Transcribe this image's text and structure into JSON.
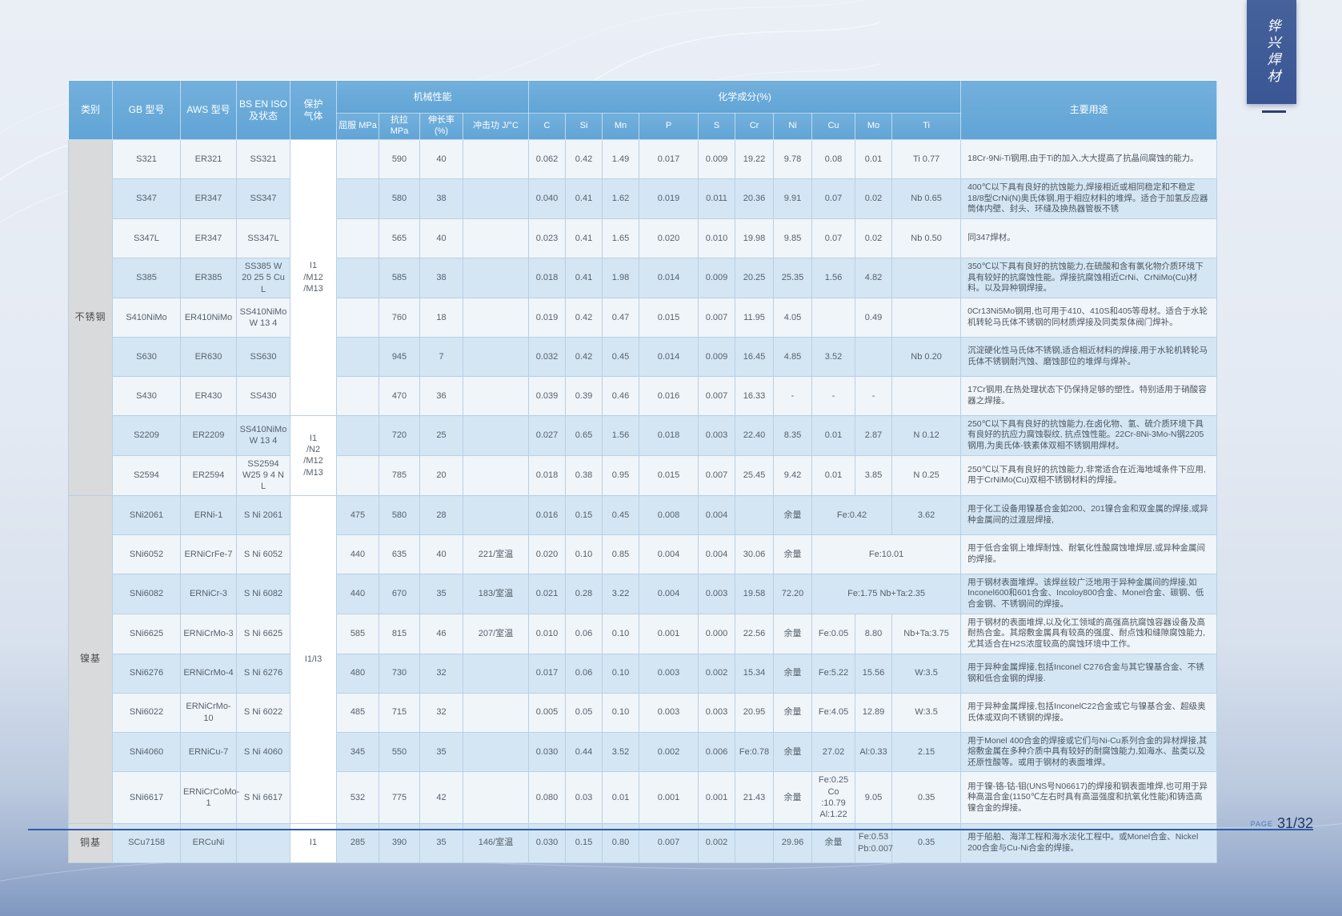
{
  "page": {
    "side_tab": "铧兴焊材",
    "footer_label": "PAGE",
    "footer_page": "31/32",
    "colors": {
      "header_blue": "#66a9d8",
      "row_light": "#f0f5fa",
      "row_blue": "#d4e6f4",
      "category_gray": "#d9dadc",
      "tab_navy": "#3a5694",
      "footer_line_blue": "#2f5cac"
    }
  },
  "table": {
    "headers": {
      "category": "类别",
      "gb": "GB 型号",
      "aws": "AWS 型号",
      "bsen": "BS EN ISO\n及状态",
      "gas": "保护\n气体",
      "mech_group": "机械性能",
      "chem_group": "化学成分(%)",
      "use": "主要用途",
      "mech": [
        "屈服 MPa",
        "抗拉 MPa",
        "伸长率 (%)",
        "冲击功 J/°C"
      ],
      "chem": [
        "C",
        "Si",
        "Mn",
        "P",
        "S",
        "Cr",
        "Ni",
        "Cu",
        "Mo",
        "Ti"
      ]
    },
    "groups": [
      {
        "label": "不锈钢",
        "rows": 9
      },
      {
        "label": "镍基",
        "rows": 8
      },
      {
        "label": "铜基",
        "rows": 1
      }
    ],
    "gas_groups": [
      {
        "text": "I1\n/M12\n/M13",
        "rows": 7
      },
      {
        "text": "I1\n/N2\n/M12\n/M13",
        "rows": 2
      },
      {
        "text": "I1/I3",
        "rows": 8
      },
      {
        "text": "I1",
        "rows": 1
      }
    ],
    "rows": [
      {
        "gb": "S321",
        "aws": "ER321",
        "bsen": "SS321",
        "mech": [
          "",
          "590",
          "40",
          ""
        ],
        "chem": [
          "0.062",
          "0.42",
          "1.49",
          "0.017",
          "0.009",
          "19.22",
          "9.78",
          "0.08",
          "0.01",
          "Ti 0.77"
        ],
        "use": "18Cr-9Ni-Ti钢用,由于Ti的加入,大大提高了抗晶间腐蚀的能力。"
      },
      {
        "gb": "S347",
        "aws": "ER347",
        "bsen": "SS347",
        "mech": [
          "",
          "580",
          "38",
          ""
        ],
        "chem": [
          "0.040",
          "0.41",
          "1.62",
          "0.019",
          "0.011",
          "20.36",
          "9.91",
          "0.07",
          "0.02",
          "Nb 0.65"
        ],
        "use": "400℃以下具有良好的抗蚀能力,焊接相近或相同稳定和不稳定18/8型CrNi(N)奥氏体钢,用于相应材料的堆焊。适合于加氢反应器筒体内壁、封头、环缝及换热器管板不锈"
      },
      {
        "gb": "S347L",
        "aws": "ER347",
        "bsen": "SS347L",
        "mech": [
          "",
          "565",
          "40",
          ""
        ],
        "chem": [
          "0.023",
          "0.41",
          "1.65",
          "0.020",
          "0.010",
          "19.98",
          "9.85",
          "0.07",
          "0.02",
          "Nb 0.50"
        ],
        "use": "同347焊材。"
      },
      {
        "gb": "S385",
        "aws": "ER385",
        "bsen": "SS385 W\n20 25 5 Cu L",
        "mech": [
          "",
          "585",
          "38",
          ""
        ],
        "chem": [
          "0.018",
          "0.41",
          "1.98",
          "0.014",
          "0.009",
          "20.25",
          "25.35",
          "1.56",
          "4.82",
          ""
        ],
        "use": "350℃以下具有良好的抗蚀能力,在硫酸和含有氯化物介质环境下具有较好的抗腐蚀性能。焊接抗腐蚀相近CrNi、CrNiMo(Cu)材料。以及异种钢焊接。"
      },
      {
        "gb": "S410NiMo",
        "aws": "ER410NiMo",
        "bsen": "SS410NiMo\nW 13 4",
        "mech": [
          "",
          "760",
          "18",
          ""
        ],
        "chem": [
          "0.019",
          "0.42",
          "0.47",
          "0.015",
          "0.007",
          "11.95",
          "4.05",
          "",
          "0.49",
          ""
        ],
        "use": "0Cr13Ni5Mo钢用,也可用于410、410S和405等母材。适合于水轮机转轮马氏体不锈钢的同材质焊接及同类泵体阀门焊补。"
      },
      {
        "gb": "S630",
        "aws": "ER630",
        "bsen": "SS630",
        "mech": [
          "",
          "945",
          "7",
          ""
        ],
        "chem": [
          "0.032",
          "0.42",
          "0.45",
          "0.014",
          "0.009",
          "16.45",
          "4.85",
          "3.52",
          "",
          "Nb 0.20"
        ],
        "use": "沉淀硬化性马氏体不锈钢,适合相近材料的焊接,用于水轮机转轮马氏体不锈钢耐汽蚀、磨蚀部位的堆焊与焊补。"
      },
      {
        "gb": "S430",
        "aws": "ER430",
        "bsen": "SS430",
        "mech": [
          "",
          "470",
          "36",
          ""
        ],
        "chem": [
          "0.039",
          "0.39",
          "0.46",
          "0.016",
          "0.007",
          "16.33",
          "-",
          "-",
          "-",
          ""
        ],
        "use": "17Cr钢用,在热处理状态下仍保持足够的塑性。特别适用于硝酸容器之焊接。"
      },
      {
        "gb": "S2209",
        "aws": "ER2209",
        "bsen": "SS410NiMo\nW 13 4",
        "mech": [
          "",
          "720",
          "25",
          ""
        ],
        "chem": [
          "0.027",
          "0.65",
          "1.56",
          "0.018",
          "0.003",
          "22.40",
          "8.35",
          "0.01",
          "2.87",
          "N 0.12"
        ],
        "use": "250℃以下具有良好的抗蚀能力,在卤化物、氢、硫介质环境下具有良好的抗应力腐蚀裂纹, 抗点蚀性能。22Cr-8Ni-3Mo-N钢2205钢用,为奥氏体-铁素体双相不锈钢用焊材。"
      },
      {
        "gb": "S2594",
        "aws": "ER2594",
        "bsen": "SS2594\nW25 9 4 N L",
        "mech": [
          "",
          "785",
          "20",
          ""
        ],
        "chem": [
          "0.018",
          "0.38",
          "0.95",
          "0.015",
          "0.007",
          "25.45",
          "9.42",
          "0.01",
          "3.85",
          "N 0.25"
        ],
        "use": "250℃以下具有良好的抗蚀能力,非常适合在近海地域条件下应用,用于CrNiMo(Cu)双相不锈钢材料的焊接。"
      },
      {
        "gb": "SNi2061",
        "aws": "ERNi-1",
        "bsen": "S Ni 2061",
        "mech": [
          "475",
          "580",
          "28",
          ""
        ],
        "chem": [
          "0.016",
          "0.15",
          "0.45",
          "0.008",
          "0.004",
          "",
          "余量",
          {
            "v": "Fe:0.42",
            "s": 2
          },
          "3.62"
        ],
        "use": "用于化工设备用镍基合金如200、201镍合金和双金属的焊接,或异种金属间的过渡层焊接,"
      },
      {
        "gb": "SNi6052",
        "aws": "ERNiCrFe-7",
        "bsen": "S Ni 6052",
        "mech": [
          "440",
          "635",
          "40",
          "221/室温"
        ],
        "chem": [
          "0.020",
          "0.10",
          "0.85",
          "0.004",
          "0.004",
          "30.06",
          "余量",
          {
            "v": "Fe:10.01",
            "s": 3
          }
        ],
        "use": "用于低合金钢上堆焊耐蚀、耐氧化性酸腐蚀堆焊层,或异种金属间的焊接。"
      },
      {
        "gb": "SNi6082",
        "aws": "ERNiCr-3",
        "bsen": "S Ni 6082",
        "mech": [
          "440",
          "670",
          "35",
          "183/室温"
        ],
        "chem": [
          "0.021",
          "0.28",
          "3.22",
          "0.004",
          "0.003",
          "19.58",
          "72.20",
          {
            "v": "Fe:1.75 Nb+Ta:2.35",
            "s": 3
          }
        ],
        "use": "用于钢材表面堆焊。该焊丝较广泛地用于异种金属间的焊接,如Inconel600和601合金、Incoloy800合金、Monel合金、碳钢、低合金钢、不锈钢间的焊接。"
      },
      {
        "gb": "SNi6625",
        "aws": "ERNiCrMo-3",
        "bsen": "S Ni 6625",
        "mech": [
          "585",
          "815",
          "46",
          "207/室温"
        ],
        "chem": [
          "0.010",
          "0.06",
          "0.10",
          "0.001",
          "0.000",
          "22.56",
          "余量",
          "Fe:0.05",
          "8.80",
          "Nb+Ta:3.75"
        ],
        "use": "用于钢材的表面堆焊,以及化工领域的高强高抗腐蚀容器设备及高耐热合金。其熔敷金属具有较高的强度、耐点蚀和缝隙腐蚀能力,尤其适合在H2S浓度较高的腐蚀环境中工作。"
      },
      {
        "gb": "SNi6276",
        "aws": "ERNiCrMo-4",
        "bsen": "S Ni 6276",
        "mech": [
          "480",
          "730",
          "32",
          ""
        ],
        "chem": [
          "0.017",
          "0.06",
          "0.10",
          "0.003",
          "0.002",
          "15.34",
          "余量",
          "Fe:5.22",
          "15.56",
          "W:3.5"
        ],
        "use": "用于异种金属焊接,包括Inconel C276合金与其它镍基合金、不锈钢和低合金钢的焊接."
      },
      {
        "gb": "SNi6022",
        "aws": "ERNiCrMo-10",
        "bsen": "S Ni 6022",
        "mech": [
          "485",
          "715",
          "32",
          ""
        ],
        "chem": [
          "0.005",
          "0.05",
          "0.10",
          "0.003",
          "0.003",
          "20.95",
          "余量",
          "Fe:4.05",
          "12.89",
          "W:3.5"
        ],
        "use": "用于异种金属焊接,包括InconelC22合金或它与镍基合金、超级奥氏体或双向不锈钢的焊接。"
      },
      {
        "gb": "SNi4060",
        "aws": "ERNiCu-7",
        "bsen": "S Ni 4060",
        "mech": [
          "345",
          "550",
          "35",
          ""
        ],
        "chem": [
          "0.030",
          "0.44",
          "3.52",
          "0.002",
          "0.006",
          "Fe:0.78",
          "余量",
          "27.02",
          "Al:0.33",
          "2.15"
        ],
        "use": "用于Monel 400合金的焊接或它们与Ni-Cu系列合金的异材焊接,其熔敷金属在多种介质中具有较好的耐腐蚀能力,如海水、盐类以及还原性酸等。或用于钢材的表面堆焊。"
      },
      {
        "gb": "SNi6617",
        "aws": "ERNiCrCoMo-1",
        "bsen": "S Ni 6617",
        "mech": [
          "532",
          "775",
          "42",
          ""
        ],
        "chem": [
          "0.080",
          "0.03",
          "0.01",
          "0.001",
          "0.001",
          "21.43",
          "余量",
          "Fe:0.25\nCo :10.79\nAl:1.22",
          "9.05",
          "0.35"
        ],
        "use": "用于镍-铬-钴-钼(UNS号N06617)的焊接和钢表面堆焊,也可用于异种高温合金(1150℃左右时具有高温强度和抗氧化性能)和铸造高镍合金的焊接。"
      },
      {
        "gb": "SCu7158",
        "aws": "ERCuNi",
        "bsen": "",
        "mech": [
          "285",
          "390",
          "35",
          "146/室温"
        ],
        "chem": [
          "0.030",
          "0.15",
          "0.80",
          "0.007",
          "0.002",
          "",
          "29.96",
          "余量",
          "Fe:0.53\nPb:0.007",
          "0.35"
        ],
        "use": "用于船舶、海洋工程和海水淡化工程中。或Monel合金、Nickel 200合金与Cu-Ni合金的焊接。"
      }
    ]
  }
}
